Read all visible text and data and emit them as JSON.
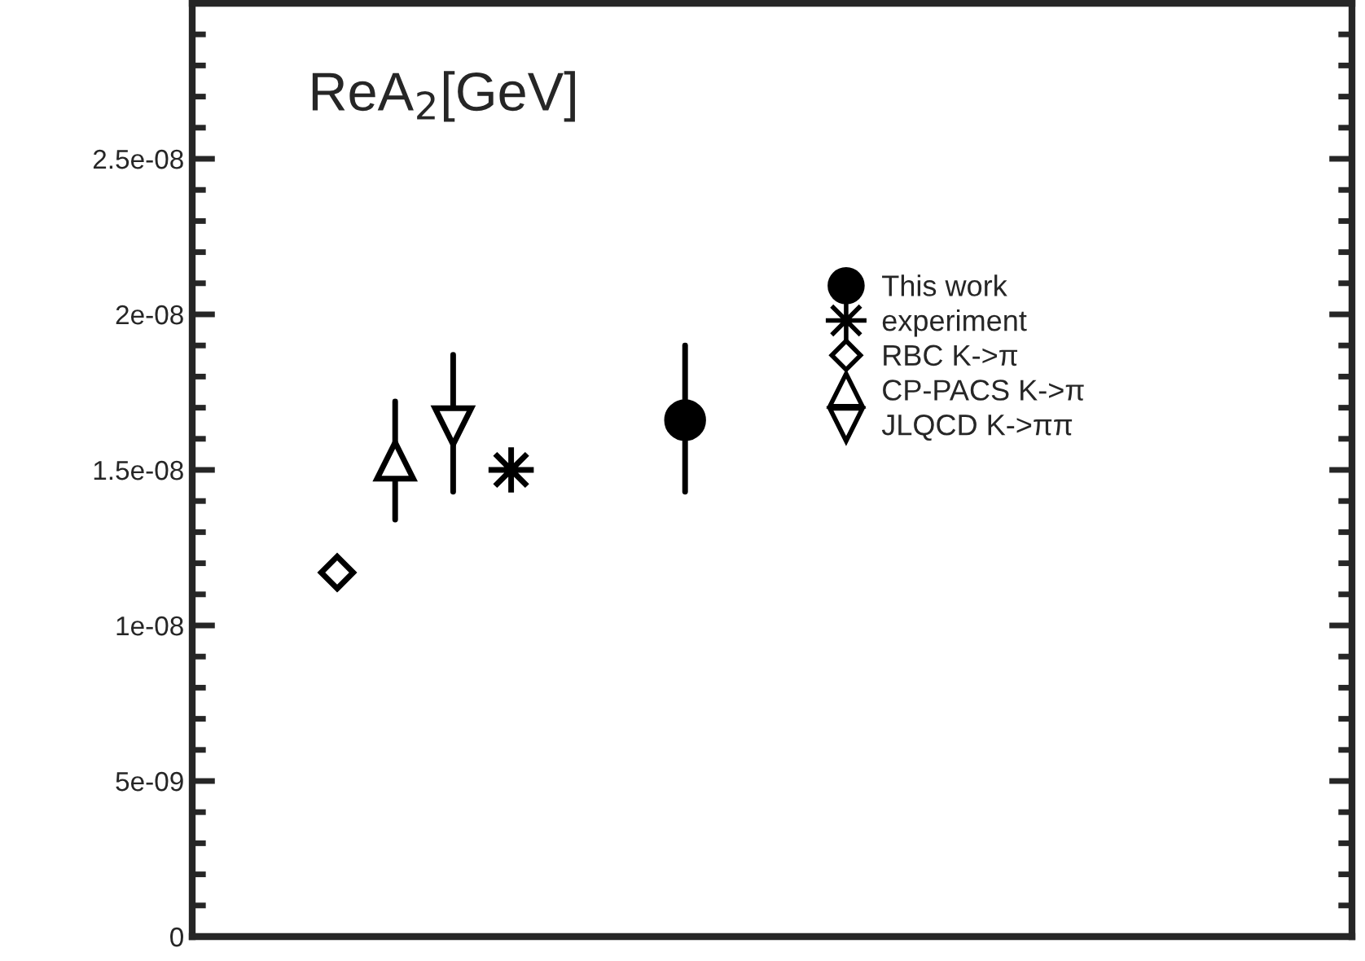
{
  "chart_data": {
    "type": "scatter",
    "annotations": [
      "ReA$_{2}$[GeV]"
    ],
    "categories": [
      null,
      null,
      null,
      null,
      null,
      null,
      null,
      null,
      null,
      null,
      null,
      null,
      null,
      null,
      null,
      null,
      null,
      null,
      null,
      null
    ],
    "ylim": [
      0,
      3e-08
    ],
    "yticks": [
      0,
      {
        "value": 5e-09,
        "label": "5e-09"
      },
      {
        "value": 1e-08,
        "label": "1e-08"
      },
      {
        "value": 1.5e-08,
        "label": "1.5e-08"
      },
      {
        "value": 2e-08,
        "label": "2e-08"
      },
      {
        "value": 2.5e-08,
        "label": "2.5e-08"
      }
    ],
    "tick_labels": "y",
    "grid": false,
    "legend": "right",
    "series": [
      {
        "name": "This work",
        "color": "#000000",
        "marker": "circle",
        "values": [
          null,
          null,
          null,
          null,
          null,
          null,
          null,
          null,
          1.66e-08,
          null,
          null,
          null,
          null,
          null,
          null,
          null,
          null,
          null,
          null,
          null
        ],
        "errors": [
          null,
          null,
          null,
          null,
          null,
          null,
          null,
          null,
          [
            1.43e-08,
            1.9e-08
          ],
          null,
          null,
          null,
          null,
          null,
          null,
          null,
          null,
          null,
          null,
          null
        ]
      },
      {
        "name": "experiment",
        "color": "#000000",
        "marker": "star",
        "values": [
          null,
          null,
          null,
          null,
          null,
          1.5e-08,
          null,
          null,
          null,
          null,
          null,
          null,
          null,
          null,
          null,
          null,
          null,
          null,
          null,
          null
        ]
      },
      {
        "name": "RBC K->π",
        "color": "#000000",
        "marker": "diamond",
        "values": [
          null,
          null,
          1.17e-08,
          null,
          null,
          null,
          null,
          null,
          null,
          null,
          null,
          null,
          null,
          null,
          null,
          null,
          null,
          null,
          null,
          null
        ]
      },
      {
        "name": "CP-PACS K->π",
        "color": "#000000",
        "marker": "triangle",
        "values": [
          null,
          null,
          null,
          1.53e-08,
          null,
          null,
          null,
          null,
          null,
          null,
          null,
          null,
          null,
          null,
          null,
          null,
          null,
          null,
          null,
          null
        ],
        "errors": [
          null,
          null,
          null,
          [
            1.34e-08,
            1.72e-08
          ],
          null,
          null,
          null,
          null,
          null,
          null,
          null,
          null,
          null,
          null,
          null,
          null,
          null,
          null,
          null,
          null
        ]
      },
      {
        "name": "JLQCD K->ππ",
        "color": "#000000",
        "marker": "triangle_down",
        "values": [
          null,
          null,
          null,
          null,
          1.64e-08,
          null,
          null,
          null,
          null,
          null,
          null,
          null,
          null,
          null,
          null,
          null,
          null,
          null,
          null,
          null
        ],
        "errors": [
          null,
          null,
          null,
          null,
          [
            1.43e-08,
            1.87e-08
          ],
          null,
          null,
          null,
          null,
          null,
          null,
          null,
          null,
          null,
          null,
          null,
          null,
          null,
          null,
          null
        ]
      }
    ]
  }
}
